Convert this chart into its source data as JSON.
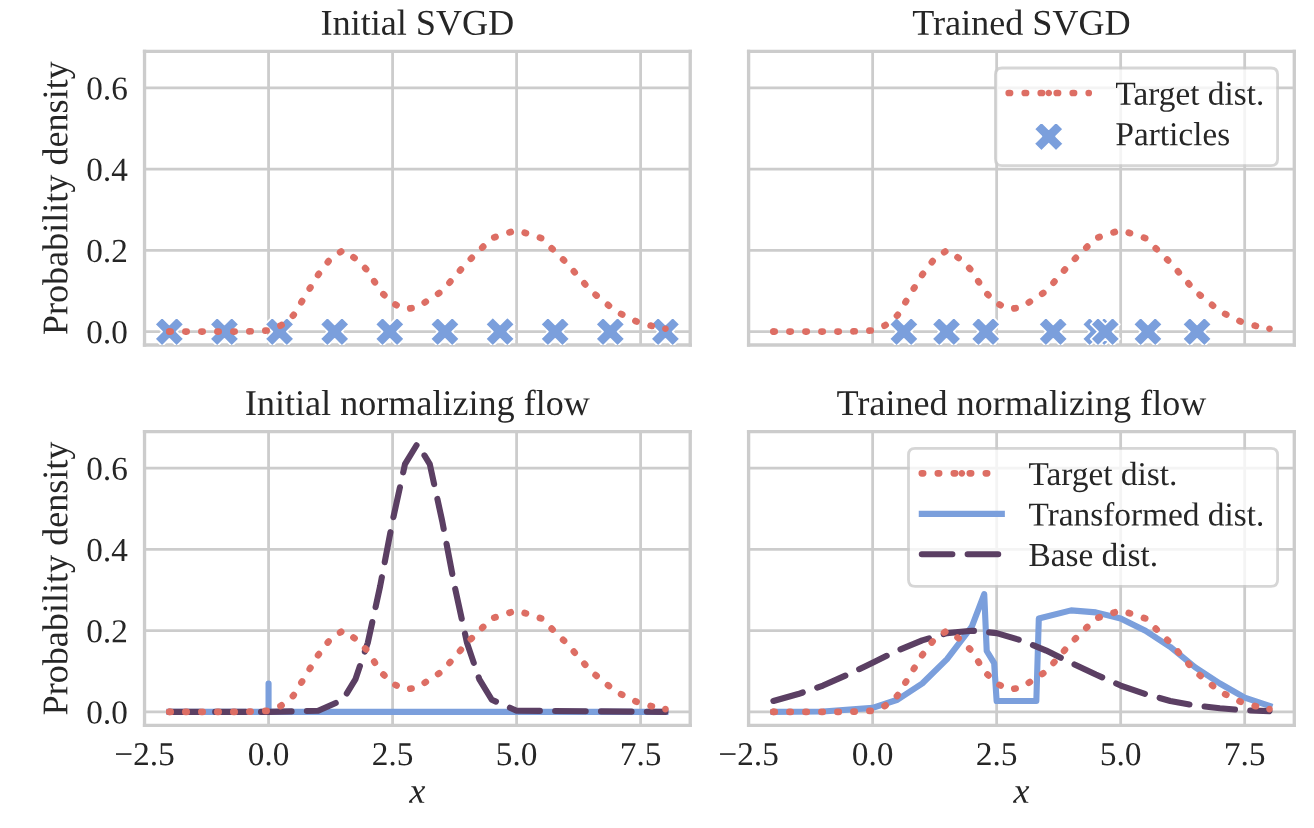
{
  "chart_data": [
    {
      "type": "line",
      "title": "Initial SVGD",
      "ylabel": "Probability density",
      "xlim": [
        -2.5,
        8.5
      ],
      "ylim": [
        -0.033,
        0.69
      ],
      "xticks": [
        0,
        2.5,
        5,
        7.5
      ],
      "yticks": [
        {
          "value": 0,
          "label": "0.0"
        },
        0.2,
        0.4,
        0.6
      ],
      "grid": true,
      "tick_labels": "y",
      "series": [
        {
          "color": "#dd6e64",
          "line_style": "dotted",
          "x": [
            -2,
            -1.5,
            -1,
            -0.5,
            0,
            0.25,
            0.5,
            0.75,
            1,
            1.25,
            1.5,
            1.75,
            2,
            2.25,
            2.5,
            2.75,
            3,
            3.5,
            4,
            4.5,
            5,
            5.5,
            6,
            6.5,
            7,
            7.5,
            8
          ],
          "values": [
            0,
            0,
            0,
            0,
            0.003,
            0.015,
            0.04,
            0.09,
            0.14,
            0.18,
            0.2,
            0.18,
            0.15,
            0.1,
            0.07,
            0.055,
            0.06,
            0.1,
            0.17,
            0.23,
            0.25,
            0.23,
            0.17,
            0.1,
            0.05,
            0.02,
            0.007
          ]
        },
        {
          "type": "scatter",
          "color": "#7b9fdc",
          "marker": "cross",
          "x": [
            -2,
            -0.889,
            0.222,
            1.333,
            2.444,
            3.556,
            4.667,
            5.778,
            6.889,
            8
          ],
          "values": [
            0,
            0,
            0,
            0,
            0,
            0,
            0,
            0,
            0,
            0
          ]
        }
      ]
    },
    {
      "type": "line",
      "title": "Trained SVGD",
      "xlim": [
        -2.5,
        8.5
      ],
      "ylim": [
        -0.033,
        0.69
      ],
      "xticks": [
        0,
        2.5,
        5,
        7.5
      ],
      "yticks": [
        0,
        0.2,
        0.4,
        0.6
      ],
      "grid": true,
      "tick_labels": false,
      "legend": "top right",
      "series": [
        {
          "name": "Target dist.",
          "color": "#dd6e64",
          "line_style": "dotted",
          "x": [
            -2,
            -1.5,
            -1,
            -0.5,
            0,
            0.25,
            0.5,
            0.75,
            1,
            1.25,
            1.5,
            1.75,
            2,
            2.25,
            2.5,
            2.75,
            3,
            3.5,
            4,
            4.5,
            5,
            5.5,
            6,
            6.5,
            7,
            7.5,
            8
          ],
          "values": [
            0,
            0,
            0,
            0,
            0.003,
            0.015,
            0.04,
            0.09,
            0.14,
            0.18,
            0.2,
            0.18,
            0.15,
            0.1,
            0.07,
            0.055,
            0.06,
            0.1,
            0.17,
            0.23,
            0.25,
            0.23,
            0.17,
            0.1,
            0.05,
            0.02,
            0.007
          ]
        },
        {
          "type": "scatter",
          "name": "Particles",
          "color": "#7b9fdc",
          "marker": "cross",
          "x": [
            0.63,
            1.49,
            2.28,
            3.64,
            4.52,
            4.69,
            5.55,
            6.54
          ],
          "values": [
            0,
            0,
            0,
            0,
            0,
            0,
            0,
            0
          ]
        }
      ]
    },
    {
      "type": "line",
      "title": "Initial normalizing flow",
      "ylabel": "Probability density",
      "xlabel": "x",
      "xlim": [
        -2.5,
        8.5
      ],
      "ylim": [
        -0.033,
        0.69
      ],
      "xticks": [
        {
          "value": -2.5,
          "label": "−2.5"
        },
        {
          "value": 0,
          "label": "0.0"
        },
        2.5,
        {
          "value": 5,
          "label": "5.0"
        },
        7.5
      ],
      "yticks": [
        {
          "value": 0,
          "label": "0.0"
        },
        0.2,
        0.4,
        0.6
      ],
      "grid": true,
      "series": [
        {
          "color": "#dd6e64",
          "line_style": "dotted",
          "x": [
            -2,
            -1.5,
            -1,
            -0.5,
            0,
            0.25,
            0.5,
            0.75,
            1,
            1.25,
            1.5,
            1.75,
            2,
            2.25,
            2.5,
            2.75,
            3,
            3.5,
            4,
            4.5,
            5,
            5.5,
            6,
            6.5,
            7,
            7.5,
            8
          ],
          "values": [
            0,
            0,
            0,
            0,
            0.003,
            0.015,
            0.04,
            0.09,
            0.14,
            0.18,
            0.2,
            0.18,
            0.15,
            0.1,
            0.07,
            0.055,
            0.06,
            0.1,
            0.17,
            0.23,
            0.25,
            0.23,
            0.17,
            0.1,
            0.05,
            0.02,
            0.007
          ]
        },
        {
          "color": "#7b9fdc",
          "line_style": "solid",
          "x": [
            -2,
            0,
            0,
            0,
            8
          ],
          "values": [
            0,
            0,
            0.07,
            0,
            0
          ]
        },
        {
          "color": "#5b3f63",
          "line_style": "dashed",
          "x": [
            -2,
            0,
            1,
            1.5,
            1.75,
            2,
            2.25,
            2.5,
            2.75,
            3,
            3.25,
            3.5,
            3.75,
            4,
            4.25,
            4.5,
            5,
            8
          ],
          "values": [
            0,
            0,
            0.003,
            0.03,
            0.08,
            0.17,
            0.31,
            0.47,
            0.61,
            0.66,
            0.61,
            0.47,
            0.31,
            0.17,
            0.08,
            0.03,
            0.003,
            0
          ]
        }
      ]
    },
    {
      "type": "line",
      "title": "Trained normalizing flow",
      "xlabel": "x",
      "xlim": [
        -2.5,
        8.5
      ],
      "ylim": [
        -0.033,
        0.69
      ],
      "xticks": [
        {
          "value": -2.5,
          "label": "−2.5"
        },
        {
          "value": 0,
          "label": "0.0"
        },
        2.5,
        {
          "value": 5,
          "label": "5.0"
        },
        7.5
      ],
      "yticks": [
        0,
        0.2,
        0.4,
        0.6
      ],
      "grid": true,
      "tick_labels": "x",
      "legend": "top right",
      "series": [
        {
          "name": "Target dist.",
          "color": "#dd6e64",
          "line_style": "dotted",
          "x": [
            -2,
            -1.5,
            -1,
            -0.5,
            0,
            0.25,
            0.5,
            0.75,
            1,
            1.25,
            1.5,
            1.75,
            2,
            2.25,
            2.5,
            2.75,
            3,
            3.5,
            4,
            4.5,
            5,
            5.5,
            6,
            6.5,
            7,
            7.5,
            8
          ],
          "values": [
            0,
            0,
            0,
            0,
            0.003,
            0.015,
            0.04,
            0.09,
            0.14,
            0.18,
            0.2,
            0.18,
            0.15,
            0.1,
            0.07,
            0.055,
            0.06,
            0.1,
            0.17,
            0.23,
            0.25,
            0.23,
            0.17,
            0.1,
            0.05,
            0.02,
            0.007
          ]
        },
        {
          "name": "Transformed dist.",
          "color": "#7b9fdc",
          "line_style": "solid",
          "x": [
            -2,
            -1,
            0,
            0.5,
            1,
            1.5,
            2,
            2.25,
            2.3,
            2.45,
            2.5,
            3,
            3.3,
            3.35,
            4,
            4.5,
            5,
            5.5,
            6,
            6.5,
            7,
            7.5,
            8
          ],
          "values": [
            0,
            0.001,
            0.01,
            0.03,
            0.07,
            0.13,
            0.21,
            0.29,
            0.15,
            0.12,
            0.027,
            0.027,
            0.027,
            0.23,
            0.25,
            0.245,
            0.23,
            0.2,
            0.16,
            0.11,
            0.07,
            0.035,
            0.015
          ]
        },
        {
          "name": "Base dist.",
          "color": "#5b3f63",
          "line_style": "dashed",
          "x": [
            -2,
            -1.5,
            -1,
            -0.5,
            0,
            0.5,
            1,
            1.5,
            2,
            2.5,
            3,
            3.5,
            4,
            4.5,
            5,
            5.5,
            6,
            6.5,
            7,
            7.5,
            8
          ],
          "values": [
            0.027,
            0.044,
            0.065,
            0.092,
            0.121,
            0.151,
            0.176,
            0.194,
            0.2,
            0.194,
            0.176,
            0.151,
            0.121,
            0.092,
            0.065,
            0.044,
            0.027,
            0.016,
            0.009,
            0.004,
            0.002
          ]
        }
      ]
    }
  ]
}
